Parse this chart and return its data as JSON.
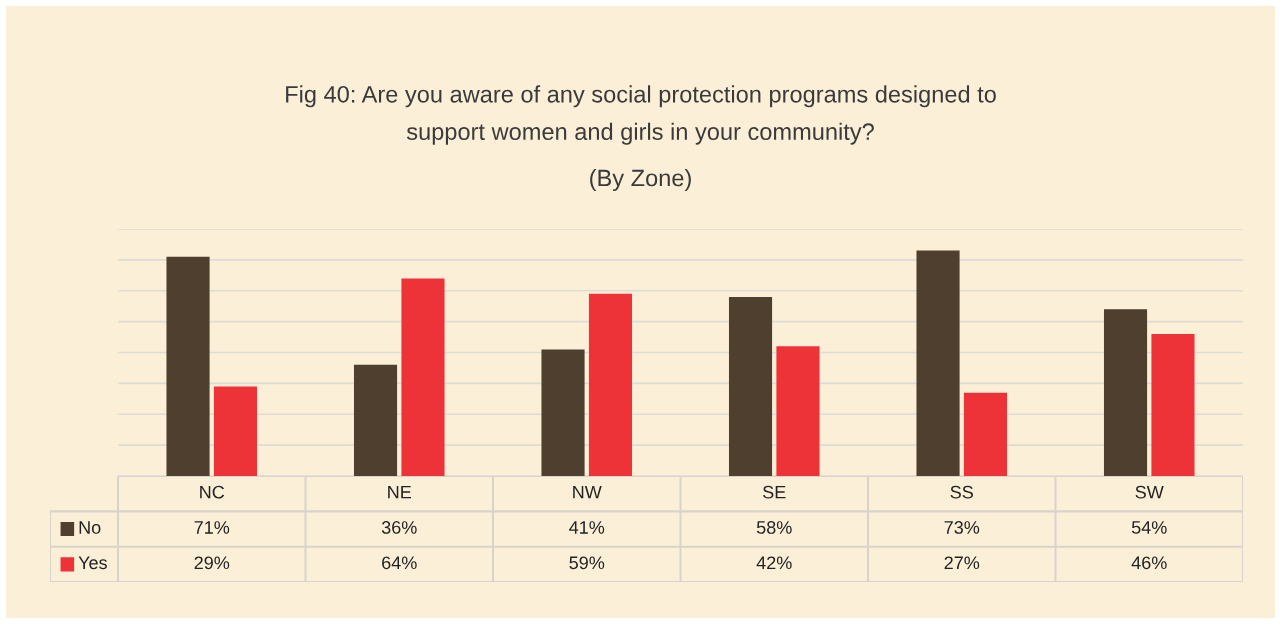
{
  "chart_data": {
    "type": "bar",
    "title": "Fig 40: Are you aware of any social protection programs designed to\nsupport women and girls in your community?",
    "subtitle": "(By Zone)",
    "categories": [
      "NC",
      "NE",
      "NW",
      "SE",
      "SS",
      "SW"
    ],
    "series": [
      {
        "name": "No",
        "color": "#4f3f2e",
        "values": [
          71,
          36,
          41,
          58,
          73,
          54
        ],
        "value_labels": [
          "71%",
          "36%",
          "41%",
          "58%",
          "73%",
          "54%"
        ]
      },
      {
        "name": "Yes",
        "color": "#ee3338",
        "values": [
          29,
          64,
          59,
          42,
          27,
          46
        ],
        "value_labels": [
          "29%",
          "64%",
          "59%",
          "42%",
          "27%",
          "46%"
        ]
      }
    ],
    "ylim": [
      0,
      80
    ],
    "yticks": [
      {
        "value": 0,
        "label": null
      },
      {
        "value": 10,
        "label": null
      },
      {
        "value": 20,
        "label": null
      },
      {
        "value": 30,
        "label": null
      },
      {
        "value": 40,
        "label": null
      },
      {
        "value": 50,
        "label": null
      },
      {
        "value": 60,
        "label": null
      },
      {
        "value": 70,
        "label": null
      },
      {
        "value": 80,
        "label": null
      }
    ],
    "grid": "y",
    "legend": "bottom",
    "tick_labels": "x"
  }
}
